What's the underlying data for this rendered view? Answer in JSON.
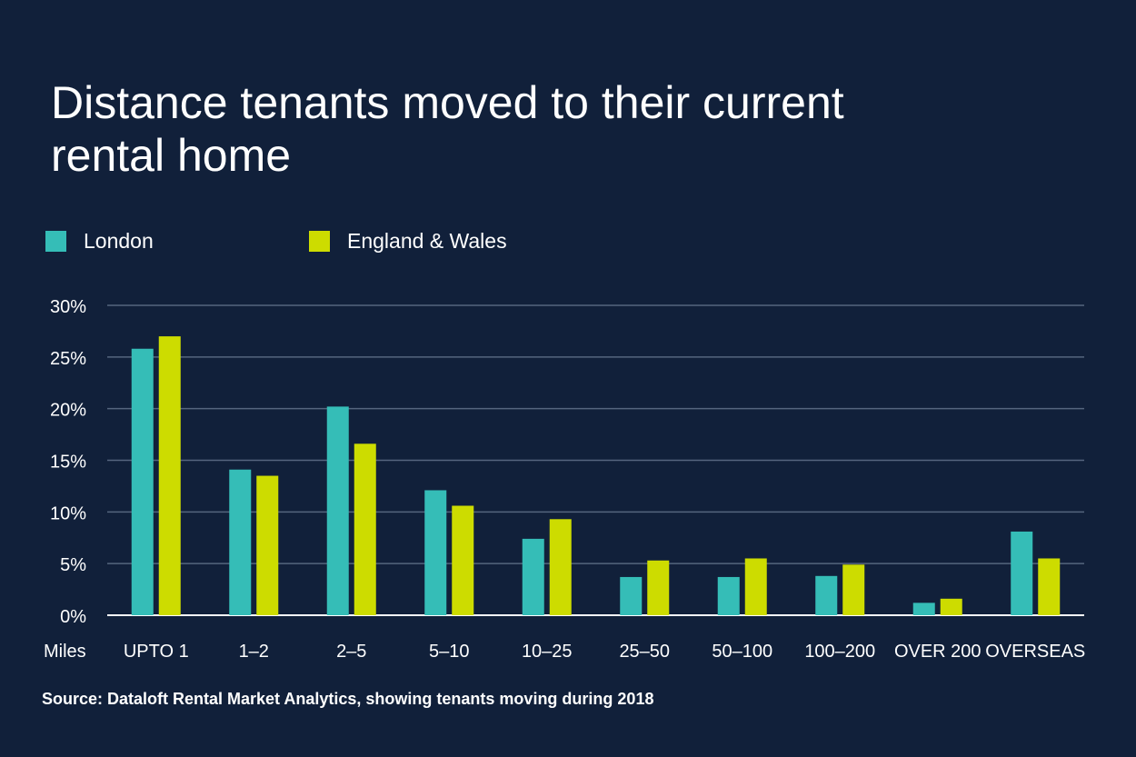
{
  "header": {
    "title_line1": "Distance tenants moved to their current",
    "title_line2": "rental home"
  },
  "legend": {
    "items": [
      {
        "label": "London",
        "color": "#35bdb7"
      },
      {
        "label": "England & Wales",
        "color": "#cddc00"
      }
    ]
  },
  "footer": {
    "source": "Source: Dataloft Rental Market Analytics, showing tenants moving during 2018"
  },
  "chart_data": {
    "type": "bar",
    "title": "Distance tenants moved to their current rental home",
    "xlabel": "Miles",
    "ylabel": "",
    "ylim": [
      0,
      30
    ],
    "yticks": [
      0,
      5,
      10,
      15,
      20,
      25,
      30
    ],
    "ytick_labels": [
      "0%",
      "5%",
      "10%",
      "15%",
      "20%",
      "25%",
      "30%"
    ],
    "grid": true,
    "legend_position": "top-left",
    "categories": [
      "UPTO 1",
      "1–2",
      "2–5",
      "5–10",
      "10–25",
      "25–50",
      "50–100",
      "100–200",
      "OVER 200",
      "OVERSEAS"
    ],
    "series": [
      {
        "name": "London",
        "color": "#35bdb7",
        "values": [
          25.8,
          14.1,
          20.2,
          12.1,
          7.4,
          3.7,
          3.7,
          3.8,
          1.2,
          8.1
        ]
      },
      {
        "name": "England & Wales",
        "color": "#cddc00",
        "values": [
          27.0,
          13.5,
          16.6,
          10.6,
          9.3,
          5.3,
          5.5,
          4.9,
          1.6,
          5.5
        ]
      }
    ]
  }
}
